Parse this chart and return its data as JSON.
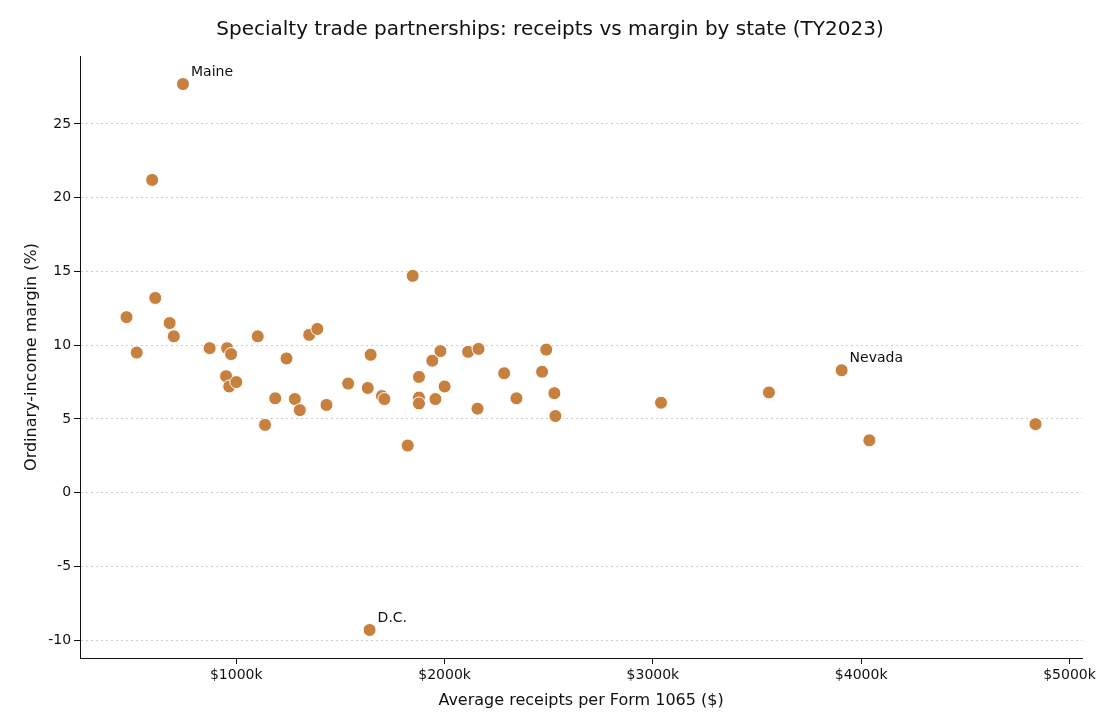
{
  "chart_data": {
    "type": "scatter",
    "title": "Specialty trade partnerships: receipts vs margin by state (TY2023)",
    "xlabel": "Average receipts per Form 1065 ($)",
    "ylabel": "Ordinary-income margin (%)",
    "x": [
      473,
      522,
      596,
      611,
      680,
      700,
      744,
      872,
      951,
      956,
      966,
      975,
      1000,
      1103,
      1138,
      1187,
      1241,
      1281,
      1305,
      1350,
      1389,
      1433,
      1537,
      1631,
      1645,
      1640,
      1699,
      1711,
      1823,
      1847,
      1877,
      1877,
      1877,
      1941,
      1956,
      1980,
      2000,
      2113,
      2158,
      2163,
      2286,
      2345,
      2468,
      2488,
      2527,
      2532,
      3039,
      3557,
      3906,
      4039,
      4837
    ],
    "values": [
      11.9,
      9.5,
      21.2,
      13.2,
      11.5,
      10.6,
      27.7,
      9.8,
      7.9,
      9.8,
      7.2,
      9.4,
      7.5,
      10.6,
      4.6,
      6.4,
      9.1,
      6.35,
      5.6,
      10.7,
      11.1,
      5.95,
      7.4,
      7.1,
      9.35,
      -9.3,
      6.55,
      6.35,
      3.2,
      14.7,
      7.85,
      6.45,
      6.05,
      8.95,
      6.35,
      9.6,
      7.2,
      9.55,
      5.7,
      9.75,
      8.1,
      6.4,
      8.2,
      9.7,
      6.75,
      5.2,
      6.1,
      6.8,
      8.3,
      3.55,
      4.65
    ],
    "color": "#c8803e",
    "marker": "circle",
    "xlim": [
      250,
      5060
    ],
    "xticks": [
      {
        "value": 1000,
        "label": "$1000k"
      },
      {
        "value": 2000,
        "label": "$2000k"
      },
      {
        "value": 3000,
        "label": "$3000k"
      },
      {
        "value": 4000,
        "label": "$4000k"
      },
      {
        "value": 5000,
        "label": "$5000k"
      }
    ],
    "ylim": [
      -11.2,
      29.6
    ],
    "yticks": [
      -10,
      -5,
      0,
      5,
      10,
      15,
      20,
      25
    ],
    "grid": "y",
    "legend": false,
    "annotations": [
      {
        "text": "Maine",
        "x": 744,
        "y": 27.7
      },
      {
        "text": "Nevada",
        "x": 3906,
        "y": 8.3
      },
      {
        "text": "D.C.",
        "x": 1640,
        "y": -9.3
      }
    ]
  }
}
